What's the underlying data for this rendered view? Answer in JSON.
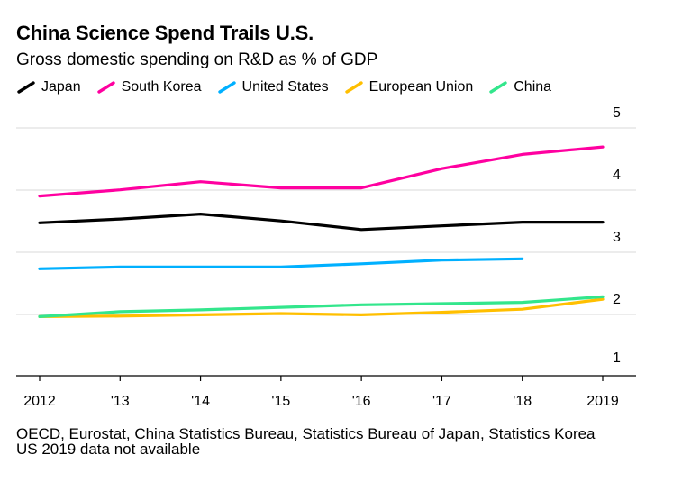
{
  "title": "China Science Spend Trails U.S.",
  "subtitle": "Gross domestic spending on R&D as % of GDP",
  "footnote": {
    "source": "OECD, Eurostat, China Statistics Bureau, Statistics Bureau of Japan, Statistics Korea",
    "note": "US 2019 data not available"
  },
  "chart_data": {
    "type": "line",
    "title": "China Science Spend Trails U.S.",
    "subtitle": "Gross domestic spending on R&D as % of GDP",
    "xlabel": "",
    "ylabel": "",
    "x": [
      2012,
      2013,
      2014,
      2015,
      2016,
      2017,
      2018,
      2019
    ],
    "x_tick_labels": [
      "2012",
      "'13",
      "'14",
      "'15",
      "'16",
      "'17",
      "'18",
      "2019"
    ],
    "y_ticks": [
      1,
      2,
      3,
      4,
      5
    ],
    "ylim": [
      0.8,
      5.2
    ],
    "grid": "horizontal",
    "legend_position": "top-left",
    "series": [
      {
        "name": "Japan",
        "color": "#000000",
        "values": [
          3.42,
          3.48,
          3.56,
          3.45,
          3.31,
          3.37,
          3.43,
          3.43
        ]
      },
      {
        "name": "South Korea",
        "color": "#ff00a0",
        "values": [
          3.85,
          3.95,
          4.08,
          3.98,
          3.98,
          4.29,
          4.52,
          4.64
        ]
      },
      {
        "name": "United States",
        "color": "#00b0ff",
        "values": [
          2.68,
          2.71,
          2.71,
          2.71,
          2.76,
          2.82,
          2.84,
          null
        ]
      },
      {
        "name": "European Union",
        "color": "#ffbf00",
        "values": [
          1.91,
          1.92,
          1.94,
          1.96,
          1.94,
          1.98,
          2.03,
          2.19
        ]
      },
      {
        "name": "China",
        "color": "#33e68c",
        "values": [
          1.91,
          1.99,
          2.02,
          2.06,
          2.1,
          2.12,
          2.14,
          2.23
        ]
      }
    ]
  }
}
